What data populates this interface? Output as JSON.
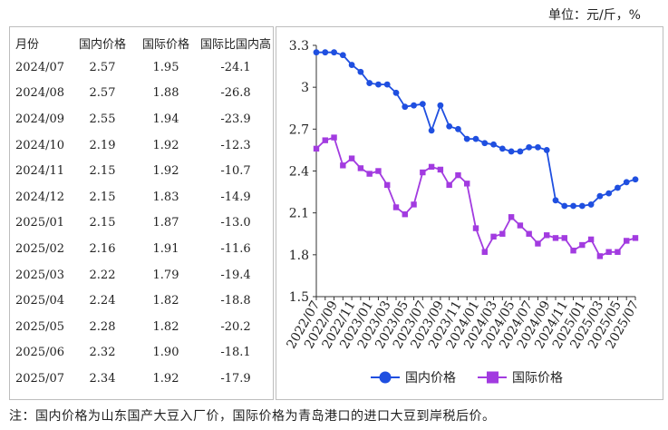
{
  "unit_label": "单位：元/斤，%",
  "table": {
    "headers": [
      "月份",
      "国内价格",
      "国际价格",
      "国际比国内高"
    ],
    "rows": [
      [
        "2024/07",
        "2.57",
        "1.95",
        "-24.1"
      ],
      [
        "2024/08",
        "2.57",
        "1.88",
        "-26.8"
      ],
      [
        "2024/09",
        "2.55",
        "1.94",
        "-23.9"
      ],
      [
        "2024/10",
        "2.19",
        "1.92",
        "-12.3"
      ],
      [
        "2024/11",
        "2.15",
        "1.92",
        "-10.7"
      ],
      [
        "2024/12",
        "2.15",
        "1.83",
        "-14.9"
      ],
      [
        "2025/01",
        "2.15",
        "1.87",
        "-13.0"
      ],
      [
        "2025/02",
        "2.16",
        "1.91",
        "-11.6"
      ],
      [
        "2025/03",
        "2.22",
        "1.79",
        "-19.4"
      ],
      [
        "2025/04",
        "2.24",
        "1.82",
        "-18.8"
      ],
      [
        "2025/05",
        "2.28",
        "1.82",
        "-20.2"
      ],
      [
        "2025/06",
        "2.32",
        "1.90",
        "-18.1"
      ],
      [
        "2025/07",
        "2.34",
        "1.92",
        "-17.9"
      ]
    ]
  },
  "chart_data": {
    "type": "line",
    "ylim": [
      1.5,
      3.3
    ],
    "yticks": [
      "3.3",
      "3",
      "2.7",
      "2.4",
      "2.1",
      "1.8",
      "1.5"
    ],
    "ytick_values": [
      3.3,
      3.0,
      2.7,
      2.4,
      2.1,
      1.8,
      1.5
    ],
    "x": [
      "2022/07",
      "2022/08",
      "2022/09",
      "2022/10",
      "2022/11",
      "2022/12",
      "2023/01",
      "2023/02",
      "2023/03",
      "2023/04",
      "2023/05",
      "2023/06",
      "2023/07",
      "2023/08",
      "2023/09",
      "2023/10",
      "2023/11",
      "2023/12",
      "2024/01",
      "2024/02",
      "2024/03",
      "2024/04",
      "2024/05",
      "2024/06",
      "2024/07",
      "2024/08",
      "2024/09",
      "2024/10",
      "2024/11",
      "2024/12",
      "2025/01",
      "2025/02",
      "2025/03",
      "2025/04",
      "2025/05",
      "2025/06",
      "2025/07"
    ],
    "xtick_labels": [
      "2022/07",
      "2022/09",
      "2022/11",
      "2023/01",
      "2023/03",
      "2023/05",
      "2023/07",
      "2023/09",
      "2023/11",
      "2024/01",
      "2024/03",
      "2024/05",
      "2024/07",
      "2024/09",
      "2024/11",
      "2025/01",
      "2025/03",
      "2025/05",
      "2025/07"
    ],
    "series": [
      {
        "name": "国内价格",
        "color": "#1f4fe0",
        "marker": "circle",
        "values": [
          3.25,
          3.25,
          3.25,
          3.23,
          3.16,
          3.11,
          3.03,
          3.02,
          3.02,
          2.96,
          2.86,
          2.87,
          2.88,
          2.69,
          2.87,
          2.72,
          2.7,
          2.63,
          2.63,
          2.6,
          2.59,
          2.56,
          2.54,
          2.54,
          2.57,
          2.57,
          2.55,
          2.19,
          2.15,
          2.15,
          2.15,
          2.16,
          2.22,
          2.24,
          2.28,
          2.32,
          2.34
        ]
      },
      {
        "name": "国际价格",
        "color": "#a23be0",
        "marker": "square",
        "values": [
          2.56,
          2.62,
          2.64,
          2.44,
          2.49,
          2.42,
          2.38,
          2.4,
          2.3,
          2.14,
          2.09,
          2.16,
          2.39,
          2.43,
          2.41,
          2.3,
          2.37,
          2.31,
          1.99,
          1.82,
          1.93,
          1.95,
          2.07,
          2.01,
          1.95,
          1.88,
          1.94,
          1.92,
          1.92,
          1.83,
          1.87,
          1.91,
          1.79,
          1.82,
          1.82,
          1.9,
          1.92
        ]
      }
    ],
    "legend_position": "bottom"
  },
  "note": "注：国内价格为山东国产大豆入厂价，国际价格为青岛港口的进口大豆到岸税后价。"
}
